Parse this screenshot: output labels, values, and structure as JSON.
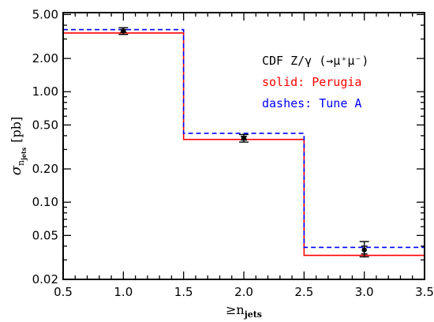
{
  "chart_data": {
    "type": "line",
    "title": "",
    "xlabel_main": "≥n",
    "xlabel_sub": "jets",
    "ylabel_main": "σ",
    "ylabel_sub": "n",
    "ylabel_subsub": "jets",
    "ylabel_unit": "[pb]",
    "xlim": [
      0.5,
      3.5
    ],
    "ylim": [
      0.02,
      5.2
    ],
    "yscale": "log",
    "x_ticks": [
      "0.5",
      "1.0",
      "1.5",
      "2.0",
      "2.5",
      "3.0",
      "3.5"
    ],
    "y_ticks": [
      "5.00",
      "2.00",
      "1.00",
      "0.50",
      "0.20",
      "0.10",
      "0.05",
      "0.02"
    ],
    "legend": {
      "title": "CDF Z/γ (→μ⁺μ⁻)",
      "entries": [
        "solid: Perugia",
        "dashes: Tune A"
      ]
    },
    "series": [
      {
        "name": "solid: Perugia",
        "style": "solid",
        "color": "#ff0000",
        "bin_edges": [
          0.5,
          1.5,
          2.5,
          3.5
        ],
        "values": [
          3.4,
          0.37,
          0.033
        ]
      },
      {
        "name": "dashes: Tune A",
        "style": "dashed",
        "color": "#0000ff",
        "bin_edges": [
          0.5,
          1.5,
          2.5,
          3.5
        ],
        "values": [
          3.65,
          0.42,
          0.039
        ]
      }
    ],
    "data_points": {
      "x": [
        1.0,
        2.0,
        3.0
      ],
      "y": [
        3.55,
        0.38,
        0.037
      ],
      "err_low": [
        3.3,
        0.35,
        0.032
      ],
      "err_high": [
        3.8,
        0.41,
        0.044
      ],
      "err_inner_low": [
        3.45,
        0.365,
        0.034
      ],
      "err_inner_high": [
        3.65,
        0.395,
        0.04
      ]
    }
  }
}
